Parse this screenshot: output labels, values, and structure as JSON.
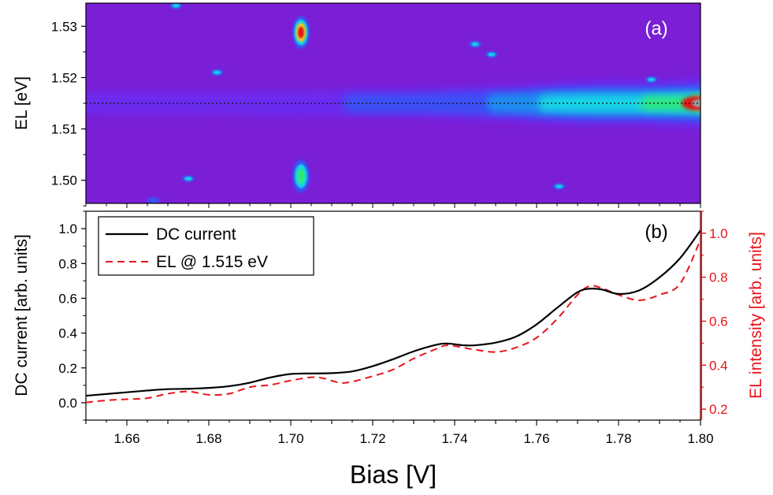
{
  "chart_data": [
    {
      "panel": "(a)",
      "type": "heatmap",
      "ylabel": "EL [eV]",
      "ylim": [
        1.4955,
        1.5345
      ],
      "xlim": [
        1.65,
        1.8
      ],
      "yticks": [
        1.5,
        1.51,
        1.52,
        1.53
      ],
      "ytick_labels": [
        "1.50",
        "1.51",
        "1.52",
        "1.53"
      ],
      "colormap": [
        "#5b12a8",
        "#7a1fd6",
        "#6a2cf0",
        "#3b4ff5",
        "#1e8ef0",
        "#19d5e6",
        "#2ee87a",
        "#b8e81c",
        "#f5c61a",
        "#f0701a",
        "#e01818",
        "#9b9b9b"
      ],
      "reference_line": {
        "y": 1.515,
        "style": "dotted"
      },
      "features": [
        {
          "kind": "emission-band",
          "center_ev": 1.515,
          "note": "broadens and intensifies above 1.76 V"
        },
        {
          "kind": "spot",
          "x": 1.7025,
          "y": 1.5288,
          "peak": "red"
        },
        {
          "kind": "spot",
          "x": 1.7025,
          "y": 1.5008,
          "peak": "green"
        },
        {
          "kind": "spot",
          "x": 1.672,
          "y": 1.534,
          "peak": "cyan"
        },
        {
          "kind": "spot",
          "x": 1.682,
          "y": 1.521,
          "peak": "cyan"
        },
        {
          "kind": "spot",
          "x": 1.745,
          "y": 1.5265,
          "peak": "cyan"
        },
        {
          "kind": "spot",
          "x": 1.749,
          "y": 1.5245,
          "peak": "cyan"
        },
        {
          "kind": "spot",
          "x": 1.7655,
          "y": 1.4988,
          "peak": "cyan"
        },
        {
          "kind": "spot",
          "x": 1.675,
          "y": 1.5003,
          "peak": "cyan"
        },
        {
          "kind": "spot",
          "x": 1.788,
          "y": 1.5196,
          "peak": "cyan"
        },
        {
          "kind": "spot",
          "x": 1.6665,
          "y": 1.4961,
          "peak": "blue"
        }
      ],
      "annotation": "(a)"
    },
    {
      "panel": "(b)",
      "type": "line",
      "xlabel": "Bias [V]",
      "xlim": [
        1.65,
        1.8
      ],
      "xticks": [
        1.66,
        1.68,
        1.7,
        1.72,
        1.74,
        1.76,
        1.78,
        1.8
      ],
      "xtick_labels": [
        "1.66",
        "1.68",
        "1.70",
        "1.72",
        "1.74",
        "1.76",
        "1.78",
        "1.80"
      ],
      "ylabel": "DC current [arb. units]",
      "ylim": [
        -0.1,
        1.1
      ],
      "yticks": [
        0.0,
        0.2,
        0.4,
        0.6,
        0.8,
        1.0
      ],
      "ytick_labels": [
        "0.0",
        "0.2",
        "0.4",
        "0.6",
        "0.8",
        "1.0"
      ],
      "y2label": "EL intensity [arb. units]",
      "y2lim": [
        0.15,
        1.1
      ],
      "y2ticks": [
        0.2,
        0.4,
        0.6,
        0.8,
        1.0
      ],
      "y2tick_labels": [
        "0.2",
        "0.4",
        "0.6",
        "0.8",
        "1.0"
      ],
      "annotation": "(b)",
      "legend_position": "top-left",
      "series": [
        {
          "name": "DC current",
          "axis": "left",
          "color": "#000000",
          "style": "solid",
          "x": [
            1.65,
            1.655,
            1.66,
            1.665,
            1.67,
            1.675,
            1.68,
            1.685,
            1.69,
            1.695,
            1.7,
            1.705,
            1.71,
            1.715,
            1.72,
            1.725,
            1.73,
            1.735,
            1.738,
            1.742,
            1.745,
            1.75,
            1.755,
            1.76,
            1.765,
            1.77,
            1.773,
            1.776,
            1.78,
            1.785,
            1.79,
            1.795,
            1.8
          ],
          "y": [
            0.04,
            0.05,
            0.06,
            0.07,
            0.078,
            0.08,
            0.085,
            0.095,
            0.115,
            0.145,
            0.165,
            0.168,
            0.17,
            0.18,
            0.21,
            0.25,
            0.295,
            0.33,
            0.34,
            0.33,
            0.33,
            0.345,
            0.38,
            0.45,
            0.545,
            0.635,
            0.655,
            0.65,
            0.625,
            0.645,
            0.72,
            0.83,
            0.99
          ]
        },
        {
          "name": "EL @ 1.515 eV",
          "axis": "right",
          "color": "#e8141a",
          "style": "dashed",
          "x": [
            1.65,
            1.655,
            1.66,
            1.665,
            1.67,
            1.675,
            1.68,
            1.685,
            1.69,
            1.695,
            1.7,
            1.705,
            1.708,
            1.712,
            1.715,
            1.72,
            1.725,
            1.73,
            1.735,
            1.738,
            1.742,
            1.745,
            1.75,
            1.755,
            1.76,
            1.765,
            1.77,
            1.773,
            1.776,
            1.78,
            1.785,
            1.79,
            1.795,
            1.8
          ],
          "y": [
            0.23,
            0.24,
            0.245,
            0.25,
            0.27,
            0.28,
            0.265,
            0.27,
            0.3,
            0.31,
            0.33,
            0.345,
            0.34,
            0.32,
            0.325,
            0.35,
            0.38,
            0.43,
            0.47,
            0.49,
            0.48,
            0.47,
            0.46,
            0.48,
            0.525,
            0.61,
            0.72,
            0.76,
            0.75,
            0.72,
            0.695,
            0.72,
            0.77,
            0.97
          ]
        }
      ]
    }
  ]
}
